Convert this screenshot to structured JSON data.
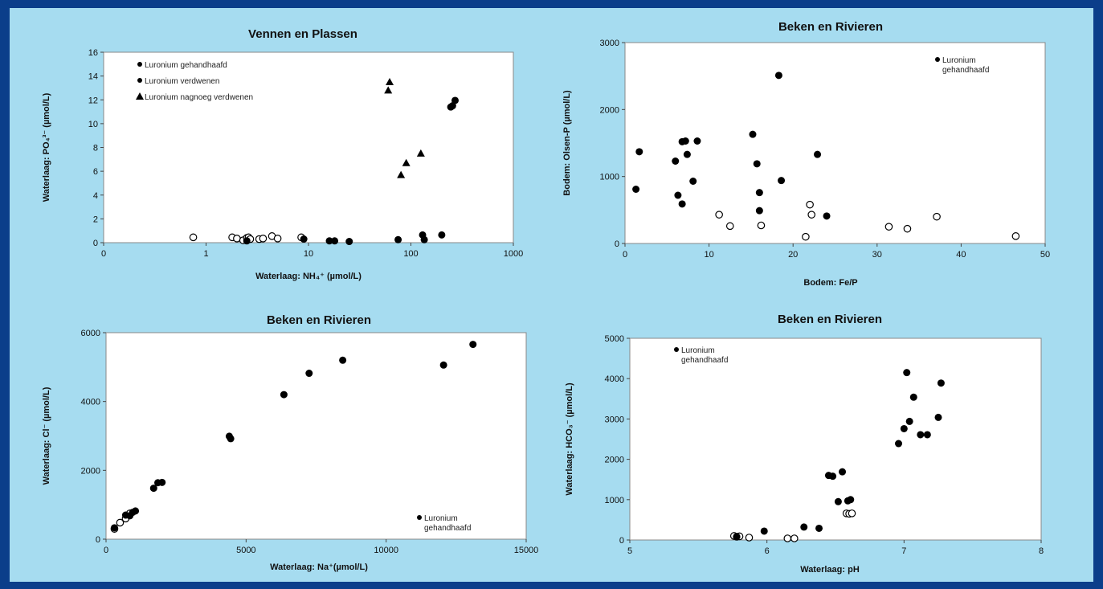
{
  "chart_data": [
    {
      "type": "scatter",
      "title": "Vennen en Plassen",
      "xlabel": "Waterlaag: NH₄⁺ (µmol/L)",
      "ylabel": "Waterlaag: PO₄³⁻ (µmol/L)",
      "xscale": "log",
      "xlim": [
        0,
        1000
      ],
      "ylim": [
        0,
        16
      ],
      "xticks": [
        0,
        1,
        10,
        100,
        1000
      ],
      "xtick_labels": [
        "0",
        "1",
        "10",
        "100",
        "1000"
      ],
      "yticks": [
        0,
        2,
        4,
        6,
        8,
        10,
        12,
        14,
        16
      ],
      "legend": "top-left",
      "series": [
        {
          "name": "Luronium gehandhaafd",
          "marker": "open-circle",
          "points": [
            [
              0.75,
              0.45
            ],
            [
              1.8,
              0.45
            ],
            [
              2.0,
              0.35
            ],
            [
              2.3,
              0.2
            ],
            [
              2.5,
              0.4
            ],
            [
              2.6,
              0.45
            ],
            [
              2.7,
              0.3
            ],
            [
              3.3,
              0.3
            ],
            [
              3.6,
              0.35
            ],
            [
              4.4,
              0.55
            ],
            [
              5.0,
              0.35
            ],
            [
              8.5,
              0.45
            ]
          ]
        },
        {
          "name": "Luronium verdwenen",
          "marker": "filled-circle",
          "points": [
            [
              2.5,
              0.15
            ],
            [
              9.0,
              0.3
            ],
            [
              16,
              0.15
            ],
            [
              18,
              0.15
            ],
            [
              25,
              0.1
            ],
            [
              75,
              0.25
            ],
            [
              130,
              0.65
            ],
            [
              135,
              0.25
            ],
            [
              200,
              0.65
            ],
            [
              245,
              11.4
            ],
            [
              255,
              11.5
            ],
            [
              270,
              11.95
            ]
          ]
        },
        {
          "name": "Luronium nagnoeg verdwenen",
          "marker": "filled-triangle",
          "points": [
            [
              60,
              12.8
            ],
            [
              62,
              13.5
            ],
            [
              80,
              5.7
            ],
            [
              90,
              6.7
            ],
            [
              125,
              7.5
            ]
          ]
        }
      ]
    },
    {
      "type": "scatter",
      "title": "Beken en Rivieren",
      "xlabel": "Bodem: Fe/P",
      "ylabel": "Bodem: Olsen-P (µmol/L)",
      "xlim": [
        0,
        50
      ],
      "ylim": [
        0,
        3000
      ],
      "xticks": [
        0,
        10,
        20,
        30,
        40,
        50
      ],
      "yticks": [
        0,
        1000,
        2000,
        3000
      ],
      "legend": "top-right",
      "series": [
        {
          "name": "Luronium gehandhaafd",
          "marker": "open-circle",
          "points": [
            [
              11.2,
              430
            ],
            [
              12.5,
              260
            ],
            [
              16.2,
              270
            ],
            [
              21.5,
              100
            ],
            [
              22.0,
              580
            ],
            [
              22.2,
              430
            ],
            [
              31.4,
              250
            ],
            [
              33.6,
              220
            ],
            [
              37.1,
              400
            ],
            [
              46.5,
              110
            ]
          ]
        },
        {
          "marker": "filled-circle",
          "points": [
            [
              1.3,
              810
            ],
            [
              1.7,
              1370
            ],
            [
              6.0,
              1230
            ],
            [
              6.3,
              720
            ],
            [
              6.8,
              590
            ],
            [
              6.8,
              1520
            ],
            [
              7.2,
              1530
            ],
            [
              7.4,
              1330
            ],
            [
              8.1,
              930
            ],
            [
              8.6,
              1530
            ],
            [
              15.2,
              1630
            ],
            [
              15.7,
              1190
            ],
            [
              16.0,
              760
            ],
            [
              16.0,
              490
            ],
            [
              18.3,
              2510
            ],
            [
              18.6,
              940
            ],
            [
              22.9,
              1330
            ],
            [
              24.0,
              410
            ]
          ]
        }
      ]
    },
    {
      "type": "scatter",
      "title": "Beken en Rivieren",
      "xlabel": "Waterlaag: Na⁺(µmol/L)",
      "ylabel": "Waterlaag: Cl⁻ (µmol/L)",
      "xlim": [
        0,
        15000
      ],
      "ylim": [
        0,
        6000
      ],
      "xticks": [
        0,
        5000,
        10000,
        15000
      ],
      "yticks": [
        0,
        2000,
        4000,
        6000
      ],
      "legend": "bottom-right",
      "series": [
        {
          "name": "Luronium gehandhaafd",
          "marker": "open-circle",
          "points": [
            [
              300,
              300
            ],
            [
              500,
              480
            ],
            [
              700,
              600
            ],
            [
              850,
              750
            ]
          ]
        },
        {
          "marker": "filled-circle",
          "points": [
            [
              300,
              330
            ],
            [
              700,
              700
            ],
            [
              850,
              680
            ],
            [
              950,
              780
            ],
            [
              1050,
              820
            ],
            [
              1700,
              1480
            ],
            [
              1850,
              1640
            ],
            [
              2000,
              1650
            ],
            [
              4400,
              2990
            ],
            [
              4450,
              2920
            ],
            [
              6350,
              4200
            ],
            [
              7250,
              4820
            ],
            [
              8450,
              5200
            ],
            [
              12050,
              5060
            ],
            [
              13100,
              5660
            ]
          ]
        }
      ]
    },
    {
      "type": "scatter",
      "title": "Beken en Rivieren",
      "xlabel": "Waterlaag: pH",
      "ylabel": "Waterlaag: HCO₃⁻ (µmol/L)",
      "xlim": [
        5,
        8
      ],
      "ylim": [
        0,
        5000
      ],
      "xticks": [
        5,
        6,
        7,
        8
      ],
      "yticks": [
        0,
        1000,
        2000,
        3000,
        4000,
        5000
      ],
      "legend": "top-left",
      "series": [
        {
          "name": "Luronium gehandhaafd",
          "marker": "open-circle",
          "points": [
            [
              5.76,
              100
            ],
            [
              5.78,
              80
            ],
            [
              5.8,
              90
            ],
            [
              5.87,
              60
            ],
            [
              6.15,
              40
            ],
            [
              6.2,
              40
            ],
            [
              6.58,
              660
            ],
            [
              6.6,
              650
            ],
            [
              6.62,
              660
            ]
          ]
        },
        {
          "marker": "filled-circle",
          "points": [
            [
              5.78,
              80
            ],
            [
              5.98,
              220
            ],
            [
              6.27,
              320
            ],
            [
              6.38,
              290
            ],
            [
              6.45,
              1600
            ],
            [
              6.48,
              1580
            ],
            [
              6.52,
              950
            ],
            [
              6.55,
              1690
            ],
            [
              6.59,
              970
            ],
            [
              6.61,
              1000
            ],
            [
              6.96,
              2390
            ],
            [
              7.0,
              2760
            ],
            [
              7.02,
              4150
            ],
            [
              7.04,
              2940
            ],
            [
              7.07,
              3540
            ],
            [
              7.12,
              2610
            ],
            [
              7.17,
              2610
            ],
            [
              7.25,
              3040
            ],
            [
              7.27,
              3890
            ]
          ]
        }
      ]
    }
  ]
}
